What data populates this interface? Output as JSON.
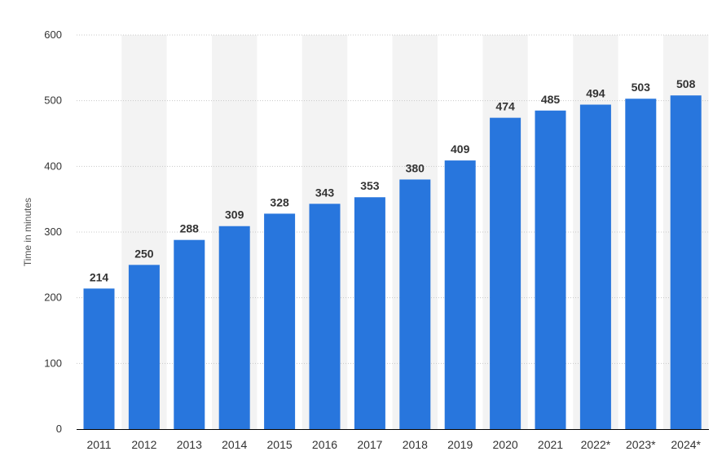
{
  "chart_data": {
    "type": "bar",
    "categories": [
      "2011",
      "2012",
      "2013",
      "2014",
      "2015",
      "2016",
      "2017",
      "2018",
      "2019",
      "2020",
      "2021",
      "2022*",
      "2023*",
      "2024*"
    ],
    "values": [
      214,
      250,
      288,
      309,
      328,
      343,
      353,
      380,
      409,
      474,
      485,
      494,
      503,
      508
    ],
    "title": "",
    "xlabel": "",
    "ylabel": "Time in minutes",
    "ylim": [
      0,
      600
    ],
    "yticks": [
      "0",
      "100",
      "200",
      "300",
      "400",
      "500",
      "600"
    ],
    "grid": true,
    "grid_style": "dotted",
    "alternating_column_bands": true,
    "data_labels": true,
    "legend": "none"
  },
  "colors": {
    "bar": "#2876dd",
    "band": "#f3f3f3",
    "grid": "#c8c8c8",
    "axis": "#000000",
    "text": "#333333"
  }
}
